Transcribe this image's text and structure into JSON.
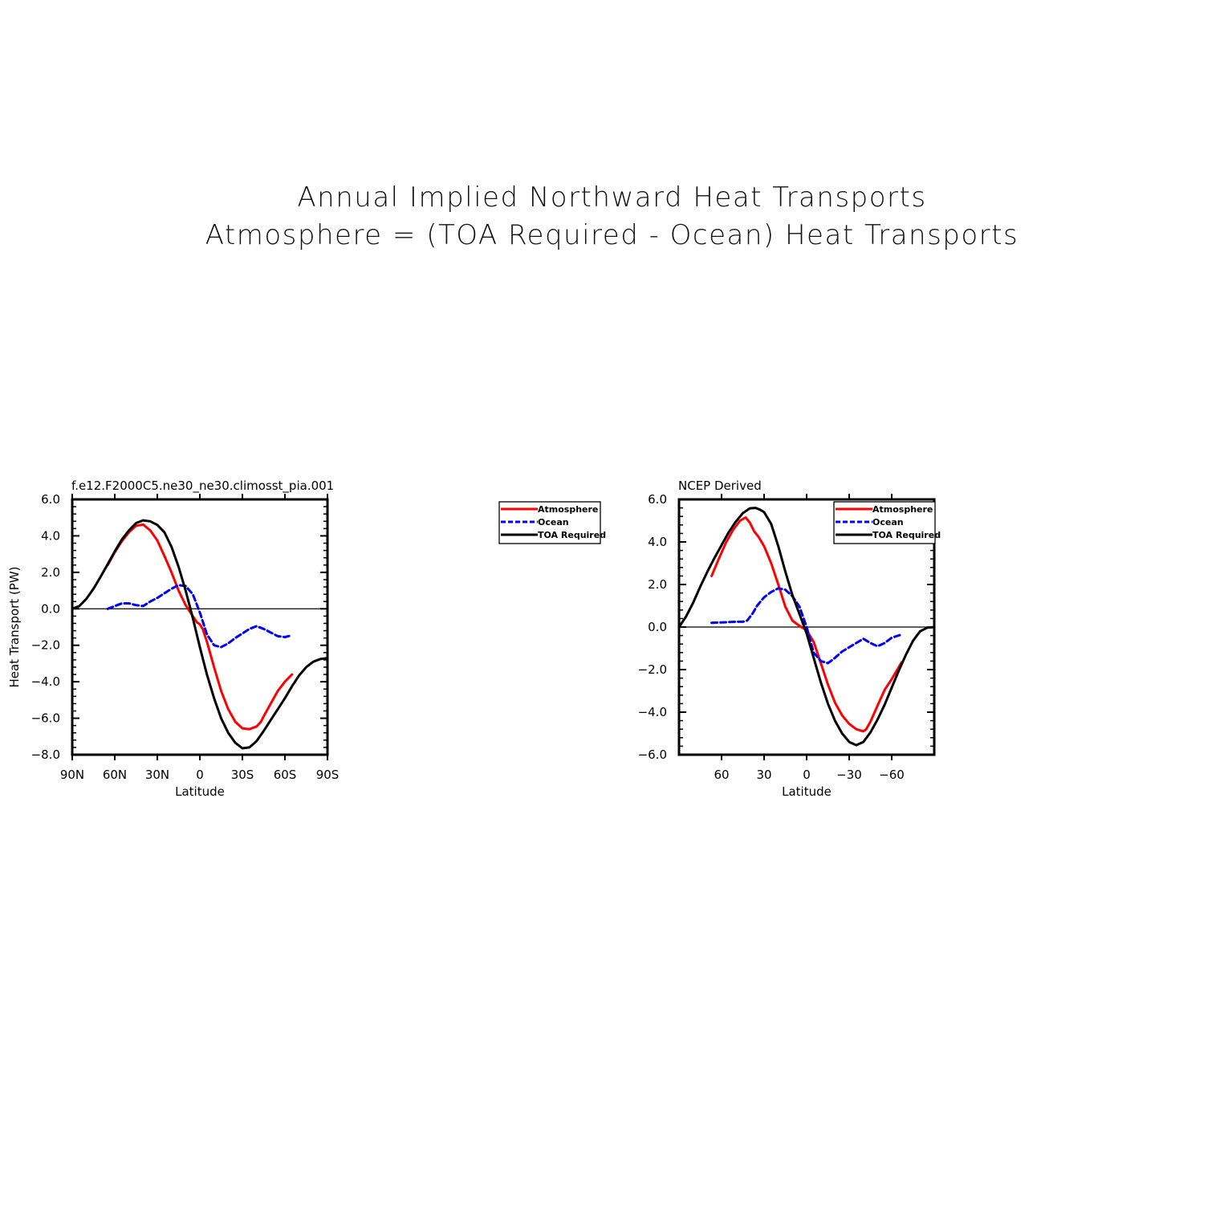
{
  "title": "Annual Implied Northward Heat Transports",
  "subtitle": "Atmosphere = (TOA Required - Ocean) Heat Transports",
  "legend": {
    "labels": [
      "Atmosphere",
      "Ocean",
      "TOA Required"
    ],
    "colors": [
      "#ff0000",
      "#0000ff",
      "#000000"
    ],
    "styles": [
      "solid",
      "dashed",
      "solid"
    ]
  },
  "chart_data": [
    {
      "type": "line",
      "title": "f.e12.F2000C5.ne30_ne30.climosst_pia.001",
      "xlabel": "Latitude",
      "ylabel": "Heat Transport (PW)",
      "xlim": [
        90,
        -90
      ],
      "ylim": [
        -8,
        6
      ],
      "xticks": [
        90,
        60,
        30,
        0,
        -30,
        -60,
        -90
      ],
      "xticklabels": [
        "90N",
        "60N",
        "30N",
        "0",
        "30S",
        "60S",
        "90S"
      ],
      "yticks": [
        6,
        4,
        2,
        0,
        -2,
        -4,
        -6,
        -8
      ],
      "yticklabels": [
        "6.0",
        "4.0",
        "2.0",
        "0.0",
        "−2.0",
        "−4.0",
        "−6.0",
        "−8.0"
      ],
      "zero_line": true,
      "legend_position": "outside-right",
      "series": [
        {
          "name": "Atmosphere",
          "color": "#ff0000",
          "dash": "solid",
          "x": [
            65,
            60,
            55,
            50,
            45,
            40,
            35,
            30,
            25,
            20,
            15,
            10,
            5,
            2,
            0,
            -2,
            -5,
            -10,
            -15,
            -20,
            -25,
            -30,
            -35,
            -40,
            -43,
            -45,
            -50,
            -55,
            -60,
            -65
          ],
          "y": [
            2.4,
            3.1,
            3.7,
            4.2,
            4.55,
            4.62,
            4.3,
            3.75,
            2.9,
            2.0,
            1.0,
            0.2,
            -0.4,
            -0.75,
            -0.85,
            -1.1,
            -1.8,
            -3.2,
            -4.5,
            -5.5,
            -6.2,
            -6.55,
            -6.6,
            -6.45,
            -6.2,
            -5.9,
            -5.2,
            -4.5,
            -4.0,
            -3.6
          ]
        },
        {
          "name": "Ocean",
          "color": "#0000ff",
          "dash": "dashed",
          "x": [
            65,
            60,
            55,
            50,
            45,
            40,
            35,
            30,
            25,
            20,
            15,
            10,
            5,
            0,
            -5,
            -10,
            -15,
            -20,
            -25,
            -30,
            -35,
            -40,
            -45,
            -50,
            -55,
            -60,
            -65
          ],
          "y": [
            0.0,
            0.15,
            0.3,
            0.3,
            0.2,
            0.15,
            0.4,
            0.6,
            0.85,
            1.1,
            1.3,
            1.25,
            0.8,
            -0.2,
            -1.4,
            -2.0,
            -2.1,
            -1.9,
            -1.6,
            -1.35,
            -1.1,
            -0.95,
            -1.1,
            -1.3,
            -1.5,
            -1.55,
            -1.45
          ]
        },
        {
          "name": "TOA Required",
          "color": "#000000",
          "dash": "solid",
          "x": [
            90,
            85,
            80,
            75,
            70,
            65,
            60,
            55,
            50,
            45,
            40,
            35,
            30,
            25,
            20,
            15,
            10,
            5,
            0,
            -5,
            -10,
            -15,
            -20,
            -25,
            -30,
            -35,
            -40,
            -45,
            -50,
            -55,
            -60,
            -65,
            -70,
            -75,
            -80,
            -85,
            -90
          ],
          "y": [
            0.0,
            0.15,
            0.55,
            1.1,
            1.75,
            2.45,
            3.15,
            3.8,
            4.3,
            4.7,
            4.85,
            4.8,
            4.6,
            4.2,
            3.4,
            2.3,
            1.0,
            -0.5,
            -2.1,
            -3.6,
            -4.9,
            -6.0,
            -6.8,
            -7.35,
            -7.65,
            -7.6,
            -7.25,
            -6.7,
            -6.1,
            -5.5,
            -4.9,
            -4.25,
            -3.65,
            -3.2,
            -2.9,
            -2.75,
            -2.7
          ]
        }
      ]
    },
    {
      "type": "line",
      "title": "NCEP Derived",
      "xlabel": "Latitude",
      "ylabel": "",
      "xlim": [
        90,
        -90
      ],
      "ylim": [
        -6,
        6
      ],
      "xticks": [
        60,
        30,
        0,
        -30,
        -60
      ],
      "xticklabels": [
        "60",
        "30",
        "0",
        "−30",
        "−60"
      ],
      "yticks": [
        6,
        4,
        2,
        0,
        -2,
        -4,
        -6
      ],
      "yticklabels": [
        "6.0",
        "4.0",
        "2.0",
        "0.0",
        "−2.0",
        "−4.0",
        "−6.0"
      ],
      "zero_line": true,
      "legend_position": "top-right",
      "series": [
        {
          "name": "Atmosphere",
          "color": "#ff0000",
          "dash": "solid",
          "x": [
            67,
            62,
            57,
            52,
            47,
            43,
            40,
            37,
            34,
            30,
            25,
            20,
            15,
            10,
            5,
            0,
            -5,
            -10,
            -15,
            -20,
            -25,
            -30,
            -35,
            -40,
            -42,
            -45,
            -50,
            -55,
            -60,
            -67
          ],
          "y": [
            2.4,
            3.2,
            3.95,
            4.55,
            5.0,
            5.15,
            4.9,
            4.5,
            4.25,
            3.8,
            3.0,
            2.0,
            0.95,
            0.3,
            0.05,
            -0.15,
            -0.7,
            -1.7,
            -2.7,
            -3.55,
            -4.15,
            -4.55,
            -4.8,
            -4.9,
            -4.8,
            -4.45,
            -3.7,
            -2.95,
            -2.45,
            -1.65
          ]
        },
        {
          "name": "Ocean",
          "color": "#0000ff",
          "dash": "dashed",
          "x": [
            67,
            60,
            50,
            45,
            42,
            38,
            35,
            30,
            25,
            20,
            15,
            10,
            5,
            0,
            -5,
            -10,
            -15,
            -20,
            -25,
            -30,
            -35,
            -40,
            -45,
            -50,
            -55,
            -60,
            -67
          ],
          "y": [
            0.2,
            0.22,
            0.25,
            0.25,
            0.3,
            0.65,
            1.0,
            1.4,
            1.65,
            1.82,
            1.75,
            1.45,
            0.95,
            0.0,
            -1.2,
            -1.6,
            -1.7,
            -1.45,
            -1.15,
            -0.95,
            -0.75,
            -0.55,
            -0.75,
            -0.9,
            -0.75,
            -0.5,
            -0.35
          ]
        },
        {
          "name": "TOA Required",
          "color": "#000000",
          "dash": "solid",
          "x": [
            90,
            85,
            80,
            75,
            70,
            65,
            60,
            55,
            50,
            45,
            40,
            36,
            33,
            30,
            25,
            20,
            15,
            10,
            5,
            0,
            -5,
            -10,
            -15,
            -20,
            -25,
            -30,
            -35,
            -40,
            -45,
            -50,
            -55,
            -60,
            -65,
            -70,
            -75,
            -80,
            -85,
            -90
          ],
          "y": [
            0.0,
            0.5,
            1.15,
            1.9,
            2.6,
            3.25,
            3.85,
            4.45,
            4.95,
            5.35,
            5.58,
            5.6,
            5.52,
            5.4,
            4.85,
            3.8,
            2.6,
            1.5,
            0.6,
            -0.3,
            -1.45,
            -2.6,
            -3.6,
            -4.4,
            -5.0,
            -5.4,
            -5.55,
            -5.4,
            -4.95,
            -4.35,
            -3.65,
            -2.85,
            -2.05,
            -1.3,
            -0.65,
            -0.2,
            -0.03,
            0.0
          ]
        }
      ]
    }
  ]
}
